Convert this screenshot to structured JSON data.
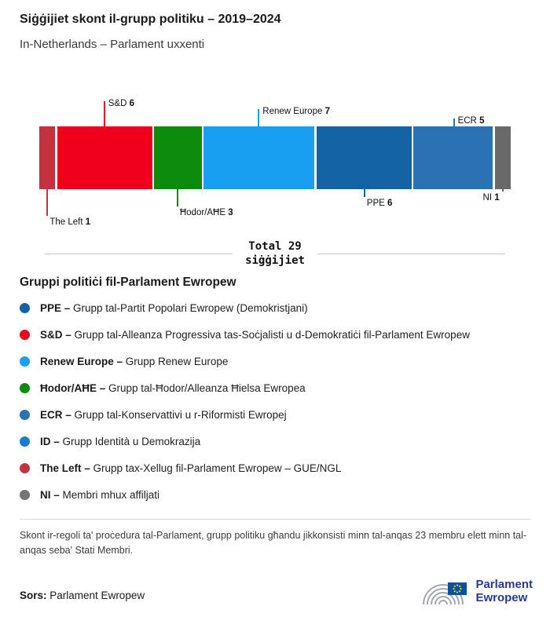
{
  "header": {
    "title": "Siġġijiet skont il-grupp politiku – 2019–2024",
    "subtitle": "In-Netherlands – Parlament uxxenti"
  },
  "chart_data": {
    "type": "bar",
    "variant": "horizontal-stacked-single-bar",
    "title": "Siġġijiet skont il-grupp politiku – 2019–2024",
    "subtitle": "In-Netherlands – Parlament uxxenti",
    "total": 29,
    "total_label_line1": "Total 29",
    "total_label_line2": "siġġijiet",
    "legend_position": "bottom",
    "segments": [
      {
        "name": "The Left",
        "value": 1,
        "color": "#C43240",
        "label_side": "bottom",
        "line_len": 34
      },
      {
        "name": "S&D",
        "value": 6,
        "color": "#F0001C",
        "label_side": "top",
        "line_len": 32
      },
      {
        "name": "Ħodor/AĦE",
        "value": 3,
        "color": "#0D8B0D",
        "label_side": "bottom",
        "line_len": 22
      },
      {
        "name": "Renew Europe",
        "value": 7,
        "color": "#189FF2",
        "label_side": "top",
        "line_len": 22
      },
      {
        "name": "PPE",
        "value": 6,
        "color": "#1463A5",
        "label_side": "bottom",
        "line_len": 10
      },
      {
        "name": "ECR",
        "value": 5,
        "color": "#2A72B4",
        "label_side": "top",
        "line_len": 10
      },
      {
        "name": "NI",
        "value": 1,
        "color": "#696969",
        "label_side": "bottom",
        "line_len": 3,
        "align": "right"
      }
    ]
  },
  "legend": {
    "title": "Gruppi politiċi fil-Parlament Ewropew",
    "items": [
      {
        "label": "PPE –",
        "description": "Grupp tal-Partit Popolari Ewropew (Demokristjani)",
        "color": "#1463A5"
      },
      {
        "label": "S&D –",
        "description": "Grupp tal-Alleanza Progressiva tas-Soċjalisti u d-Demokratiċi fil-Parlament Ewropew",
        "color": "#F0001C"
      },
      {
        "label": "Renew Europe –",
        "description": "Grupp Renew Europe",
        "color": "#189FF2"
      },
      {
        "label": "Ħodor/AĦE –",
        "description": "Grupp tal-Ħodor/Alleanza Ħielsa Ewropea",
        "color": "#0D8B0D"
      },
      {
        "label": "ECR –",
        "description": "Grupp tal-Konservattivi u r-Riformisti Ewropej",
        "color": "#2A72B4"
      },
      {
        "label": "ID –",
        "description": "Grupp Identità u Demokrazija",
        "color": "#1B7BD0"
      },
      {
        "label": "The Left –",
        "description": "Grupp tax-Xellug fil-Parlament Ewropew – GUE/NGL",
        "color": "#C43240"
      },
      {
        "label": "NI –",
        "description": "Membri mhux affiljati",
        "color": "#757575"
      }
    ]
  },
  "footnote": "Skont ir-regoli ta' proċedura tal-Parlament, grupp politiku għandu jikkonsisti minn tal-anqas 23 membru elett minn tal-anqas seba' Stati Membri.",
  "source": {
    "label": "Sors:",
    "value": "Parlament Ewropew"
  },
  "logo": {
    "line1": "Parlament",
    "line2": "Ewropew"
  }
}
